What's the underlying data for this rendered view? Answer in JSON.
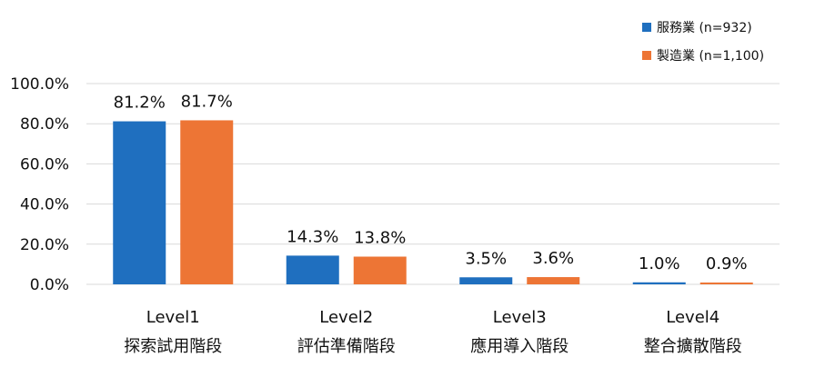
{
  "chart_data": {
    "type": "bar",
    "categories": [
      [
        "Level1",
        "探索試用階段"
      ],
      [
        "Level2",
        "評估準備階段"
      ],
      [
        "Level3",
        "應用導入階段"
      ],
      [
        "Level4",
        "整合擴散階段"
      ]
    ],
    "series": [
      {
        "name": "服務業 (n=932)",
        "color": "#1f6fbf",
        "values": [
          81.2,
          14.3,
          3.5,
          1.0
        ],
        "labels": [
          "81.2%",
          "14.3%",
          "3.5%",
          "1.0%"
        ]
      },
      {
        "name": "製造業 (n=1,100)",
        "color": "#ed7535",
        "values": [
          81.7,
          13.8,
          3.6,
          0.9
        ],
        "labels": [
          "81.7%",
          "13.8%",
          "3.6%",
          "0.9%"
        ]
      }
    ],
    "ylim": [
      0,
      100
    ],
    "yticks": [
      "0.0%",
      "20.0%",
      "40.0%",
      "60.0%",
      "80.0%",
      "100.0%"
    ],
    "grid": true,
    "legend_position": "top-right"
  }
}
